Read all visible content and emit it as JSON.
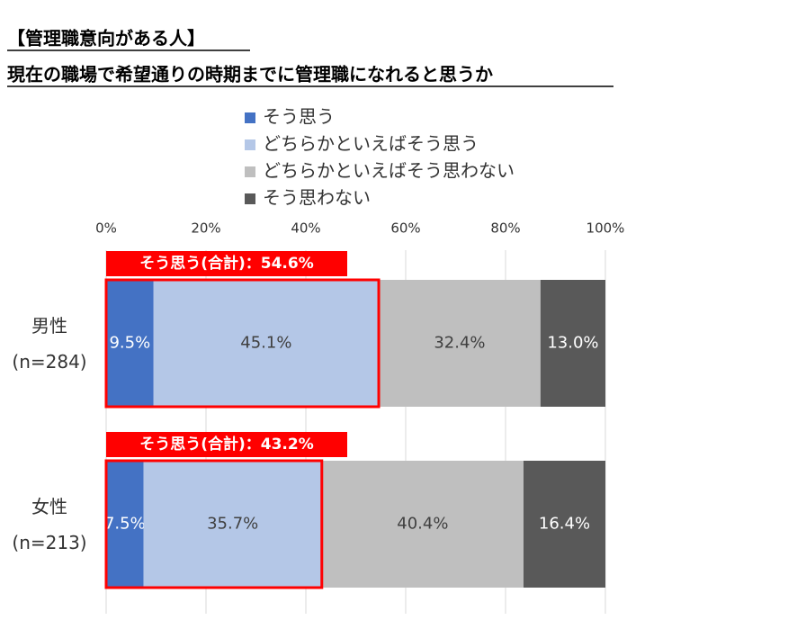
{
  "chart_data": {
    "type": "stacked-bar-horizontal",
    "title": "【管理職意向がある人】",
    "subtitle": "現在の職場で希望通りの時期までに管理職になれると思うか",
    "categories": [
      "男性",
      "女性"
    ],
    "category_sublabels": [
      "(n=284)",
      "(n=213)"
    ],
    "series": [
      {
        "name": "そう思う",
        "color": "#4472c4",
        "values": [
          9.5,
          7.5
        ],
        "value_labels": [
          "9.5%",
          "7.5%"
        ]
      },
      {
        "name": "どちらかといえばそう思う",
        "color": "#b4c7e7",
        "values": [
          45.1,
          35.7
        ],
        "value_labels": [
          "45.1%",
          "35.7%"
        ]
      },
      {
        "name": "どちらかといえばそう思わない",
        "color": "#bfbfbf",
        "values": [
          32.4,
          40.4
        ],
        "value_labels": [
          "32.4%",
          "40.4%"
        ]
      },
      {
        "name": "そう思わない",
        "color": "#595959",
        "values": [
          13.0,
          16.4
        ],
        "value_labels": [
          "13.0%",
          "16.4%"
        ]
      }
    ],
    "annotations": [
      {
        "text": "そう思う(合計)：54.6%",
        "value": 54.6,
        "color": "#ff0000"
      },
      {
        "text": "そう思う(合計)：43.2%",
        "value": 43.2,
        "color": "#ff0000"
      }
    ],
    "xlim": [
      0,
      100
    ],
    "xticks": [
      {
        "value": 0,
        "label": "0%"
      },
      {
        "value": 20,
        "label": "20%"
      },
      {
        "value": 40,
        "label": "40%"
      },
      {
        "value": 60,
        "label": "60%"
      },
      {
        "value": 80,
        "label": "80%"
      },
      {
        "value": 100,
        "label": "100%"
      }
    ],
    "grid": true
  }
}
